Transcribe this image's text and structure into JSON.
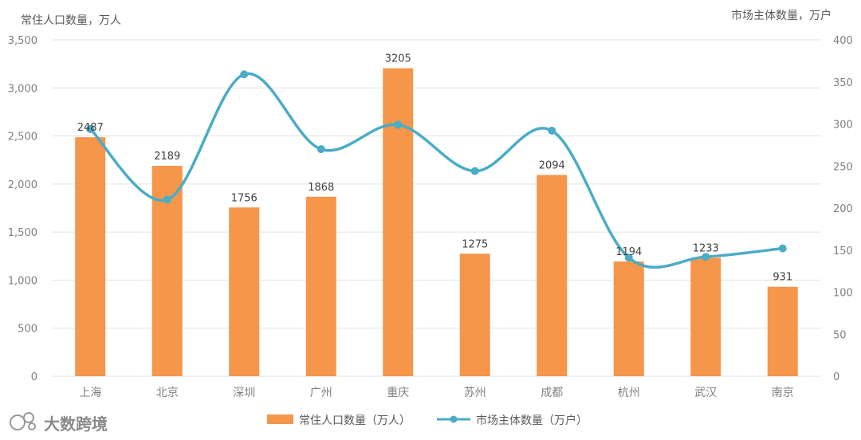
{
  "chart_data": {
    "type": "bar",
    "categories": [
      "上海",
      "北京",
      "深圳",
      "广州",
      "重庆",
      "苏州",
      "成都",
      "杭州",
      "武汉",
      "南京"
    ],
    "series": [
      {
        "name": "常住人口数量（万人）",
        "chart_type": "bar",
        "axis": "left",
        "color": "#F5964A",
        "values": [
          2487,
          2189,
          1756,
          1868,
          3205,
          1275,
          2094,
          1194,
          1233,
          931
        ],
        "data_labels": [
          "2487",
          "2189",
          "1756",
          "1868",
          "3205",
          "1275",
          "2094",
          "1194",
          "1233",
          "931"
        ]
      },
      {
        "name": "市场主体数量（万户）",
        "chart_type": "line",
        "smooth": true,
        "axis": "right",
        "color": "#4BACC6",
        "values": [
          294,
          210,
          359,
          270,
          299,
          244,
          292,
          141,
          142,
          152
        ]
      }
    ],
    "ylabel_left": "常住人口数量，万人",
    "ylabel_right": "市场主体数量，万户",
    "ylim_left": [
      0,
      3500
    ],
    "ylim_right": [
      0,
      400
    ],
    "yticks_left": [
      "0",
      "500",
      "1,000",
      "1,500",
      "2,000",
      "2,500",
      "3,000",
      "3,500"
    ],
    "yticks_right": [
      "0",
      "50",
      "100",
      "150",
      "200",
      "250",
      "300",
      "350",
      "400"
    ],
    "grid": true,
    "legend_position": "bottom"
  },
  "watermark": {
    "text": "大数跨境",
    "icon": "logo-icon"
  }
}
